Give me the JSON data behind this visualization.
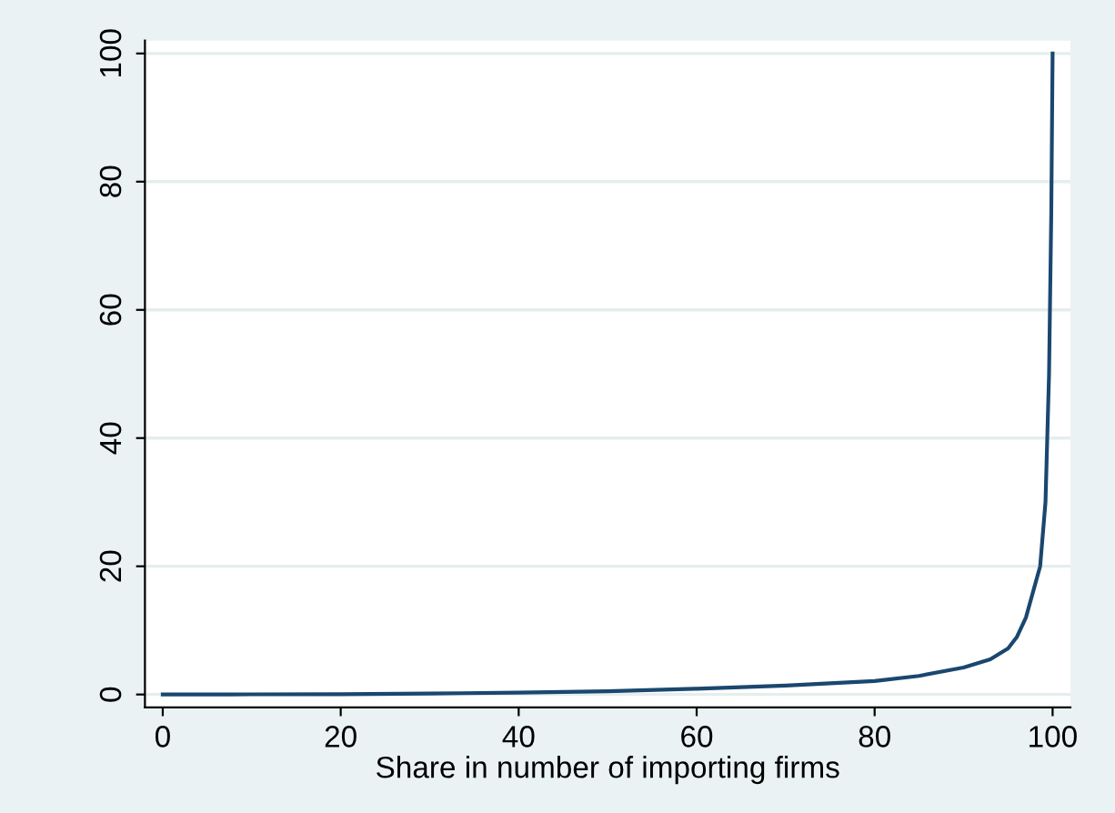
{
  "chart_data": {
    "type": "line",
    "xlabel": "Share in number of importing firms",
    "x": [
      0,
      10,
      20,
      30,
      40,
      50,
      60,
      70,
      80,
      85,
      90,
      93,
      95,
      96,
      97,
      98,
      98.6,
      99.2,
      99.6,
      99.85,
      100
    ],
    "series": [
      {
        "color": "#1a476f",
        "values": [
          0,
          0.02,
          0.05,
          0.15,
          0.3,
          0.5,
          0.9,
          1.4,
          2.1,
          2.9,
          4.2,
          5.5,
          7.2,
          9,
          12,
          17,
          20,
          30,
          50,
          75,
          100
        ]
      }
    ],
    "xlim": [
      -2,
      102
    ],
    "ylim": [
      -2,
      102
    ],
    "xticks": [
      0,
      20,
      40,
      60,
      80,
      100
    ],
    "yticks": [
      0,
      20,
      40,
      60,
      80,
      100
    ],
    "grid": "y",
    "legend": false
  }
}
